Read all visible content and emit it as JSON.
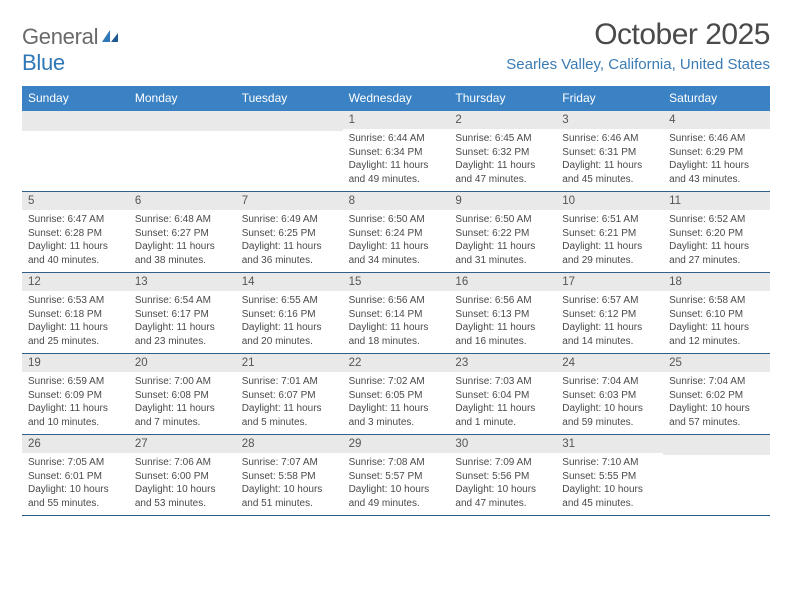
{
  "brand": {
    "word1": "General",
    "word2": "Blue"
  },
  "title": "October 2025",
  "location": "Searles Valley, California, United States",
  "colors": {
    "header_bg": "#3b82c4",
    "header_text": "#ffffff",
    "daynum_bg": "#e9e9e9",
    "week_border": "#2f5f8a",
    "brand_gray": "#6a6a6a",
    "brand_blue": "#2f77b6",
    "location_color": "#3b7bb3",
    "body_text": "#4a4a4a"
  },
  "layout": {
    "columns": 7,
    "header_fontsize": 12,
    "daynum_fontsize": 11.5,
    "detail_fontsize": 10,
    "title_fontsize": 30
  },
  "day_names": [
    "Sunday",
    "Monday",
    "Tuesday",
    "Wednesday",
    "Thursday",
    "Friday",
    "Saturday"
  ],
  "weeks": [
    [
      {
        "n": "",
        "sr": "",
        "ss": "",
        "dl": ""
      },
      {
        "n": "",
        "sr": "",
        "ss": "",
        "dl": ""
      },
      {
        "n": "",
        "sr": "",
        "ss": "",
        "dl": ""
      },
      {
        "n": "1",
        "sr": "Sunrise: 6:44 AM",
        "ss": "Sunset: 6:34 PM",
        "dl": "Daylight: 11 hours and 49 minutes."
      },
      {
        "n": "2",
        "sr": "Sunrise: 6:45 AM",
        "ss": "Sunset: 6:32 PM",
        "dl": "Daylight: 11 hours and 47 minutes."
      },
      {
        "n": "3",
        "sr": "Sunrise: 6:46 AM",
        "ss": "Sunset: 6:31 PM",
        "dl": "Daylight: 11 hours and 45 minutes."
      },
      {
        "n": "4",
        "sr": "Sunrise: 6:46 AM",
        "ss": "Sunset: 6:29 PM",
        "dl": "Daylight: 11 hours and 43 minutes."
      }
    ],
    [
      {
        "n": "5",
        "sr": "Sunrise: 6:47 AM",
        "ss": "Sunset: 6:28 PM",
        "dl": "Daylight: 11 hours and 40 minutes."
      },
      {
        "n": "6",
        "sr": "Sunrise: 6:48 AM",
        "ss": "Sunset: 6:27 PM",
        "dl": "Daylight: 11 hours and 38 minutes."
      },
      {
        "n": "7",
        "sr": "Sunrise: 6:49 AM",
        "ss": "Sunset: 6:25 PM",
        "dl": "Daylight: 11 hours and 36 minutes."
      },
      {
        "n": "8",
        "sr": "Sunrise: 6:50 AM",
        "ss": "Sunset: 6:24 PM",
        "dl": "Daylight: 11 hours and 34 minutes."
      },
      {
        "n": "9",
        "sr": "Sunrise: 6:50 AM",
        "ss": "Sunset: 6:22 PM",
        "dl": "Daylight: 11 hours and 31 minutes."
      },
      {
        "n": "10",
        "sr": "Sunrise: 6:51 AM",
        "ss": "Sunset: 6:21 PM",
        "dl": "Daylight: 11 hours and 29 minutes."
      },
      {
        "n": "11",
        "sr": "Sunrise: 6:52 AM",
        "ss": "Sunset: 6:20 PM",
        "dl": "Daylight: 11 hours and 27 minutes."
      }
    ],
    [
      {
        "n": "12",
        "sr": "Sunrise: 6:53 AM",
        "ss": "Sunset: 6:18 PM",
        "dl": "Daylight: 11 hours and 25 minutes."
      },
      {
        "n": "13",
        "sr": "Sunrise: 6:54 AM",
        "ss": "Sunset: 6:17 PM",
        "dl": "Daylight: 11 hours and 23 minutes."
      },
      {
        "n": "14",
        "sr": "Sunrise: 6:55 AM",
        "ss": "Sunset: 6:16 PM",
        "dl": "Daylight: 11 hours and 20 minutes."
      },
      {
        "n": "15",
        "sr": "Sunrise: 6:56 AM",
        "ss": "Sunset: 6:14 PM",
        "dl": "Daylight: 11 hours and 18 minutes."
      },
      {
        "n": "16",
        "sr": "Sunrise: 6:56 AM",
        "ss": "Sunset: 6:13 PM",
        "dl": "Daylight: 11 hours and 16 minutes."
      },
      {
        "n": "17",
        "sr": "Sunrise: 6:57 AM",
        "ss": "Sunset: 6:12 PM",
        "dl": "Daylight: 11 hours and 14 minutes."
      },
      {
        "n": "18",
        "sr": "Sunrise: 6:58 AM",
        "ss": "Sunset: 6:10 PM",
        "dl": "Daylight: 11 hours and 12 minutes."
      }
    ],
    [
      {
        "n": "19",
        "sr": "Sunrise: 6:59 AM",
        "ss": "Sunset: 6:09 PM",
        "dl": "Daylight: 11 hours and 10 minutes."
      },
      {
        "n": "20",
        "sr": "Sunrise: 7:00 AM",
        "ss": "Sunset: 6:08 PM",
        "dl": "Daylight: 11 hours and 7 minutes."
      },
      {
        "n": "21",
        "sr": "Sunrise: 7:01 AM",
        "ss": "Sunset: 6:07 PM",
        "dl": "Daylight: 11 hours and 5 minutes."
      },
      {
        "n": "22",
        "sr": "Sunrise: 7:02 AM",
        "ss": "Sunset: 6:05 PM",
        "dl": "Daylight: 11 hours and 3 minutes."
      },
      {
        "n": "23",
        "sr": "Sunrise: 7:03 AM",
        "ss": "Sunset: 6:04 PM",
        "dl": "Daylight: 11 hours and 1 minute."
      },
      {
        "n": "24",
        "sr": "Sunrise: 7:04 AM",
        "ss": "Sunset: 6:03 PM",
        "dl": "Daylight: 10 hours and 59 minutes."
      },
      {
        "n": "25",
        "sr": "Sunrise: 7:04 AM",
        "ss": "Sunset: 6:02 PM",
        "dl": "Daylight: 10 hours and 57 minutes."
      }
    ],
    [
      {
        "n": "26",
        "sr": "Sunrise: 7:05 AM",
        "ss": "Sunset: 6:01 PM",
        "dl": "Daylight: 10 hours and 55 minutes."
      },
      {
        "n": "27",
        "sr": "Sunrise: 7:06 AM",
        "ss": "Sunset: 6:00 PM",
        "dl": "Daylight: 10 hours and 53 minutes."
      },
      {
        "n": "28",
        "sr": "Sunrise: 7:07 AM",
        "ss": "Sunset: 5:58 PM",
        "dl": "Daylight: 10 hours and 51 minutes."
      },
      {
        "n": "29",
        "sr": "Sunrise: 7:08 AM",
        "ss": "Sunset: 5:57 PM",
        "dl": "Daylight: 10 hours and 49 minutes."
      },
      {
        "n": "30",
        "sr": "Sunrise: 7:09 AM",
        "ss": "Sunset: 5:56 PM",
        "dl": "Daylight: 10 hours and 47 minutes."
      },
      {
        "n": "31",
        "sr": "Sunrise: 7:10 AM",
        "ss": "Sunset: 5:55 PM",
        "dl": "Daylight: 10 hours and 45 minutes."
      },
      {
        "n": "",
        "sr": "",
        "ss": "",
        "dl": ""
      }
    ]
  ]
}
